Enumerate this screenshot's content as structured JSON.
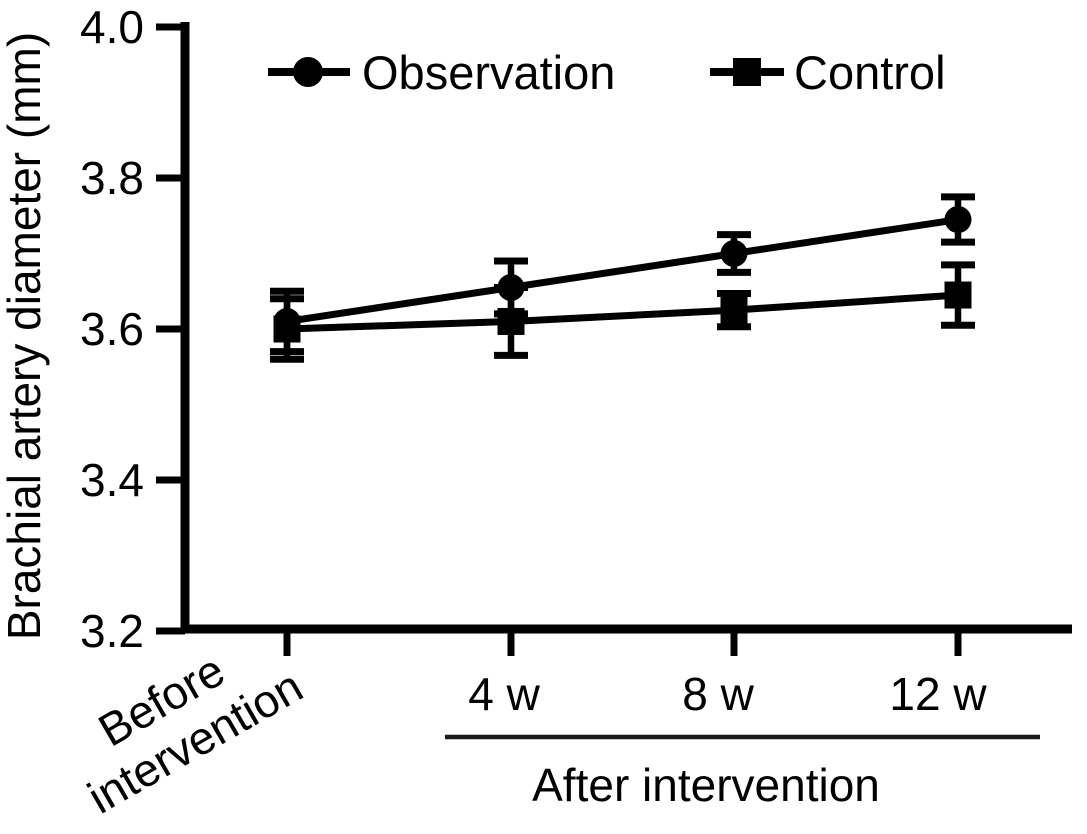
{
  "figure": {
    "background_color": "#ffffff",
    "ink_color": "#000000"
  },
  "chart_data": {
    "type": "line",
    "title": "",
    "xlabel": "",
    "ylabel": "Brachial artery diameter (mm)",
    "categories": [
      "Before intervention",
      "4 w",
      "8 w",
      "12 w"
    ],
    "x_group_label": "After intervention",
    "x_group_members": [
      "4 w",
      "8 w",
      "12 w"
    ],
    "ylim": [
      3.2,
      4.0
    ],
    "yticks": [
      4.0,
      3.8,
      3.6,
      3.4,
      3.2
    ],
    "grid": false,
    "legend_position": "top-center-inside",
    "error_bars": true,
    "series": [
      {
        "name": "Observation",
        "marker": "circle",
        "color": "#000000",
        "values": [
          3.61,
          3.655,
          3.7,
          3.745
        ],
        "errors": [
          0.04,
          0.035,
          0.025,
          0.03
        ]
      },
      {
        "name": "Control",
        "marker": "square",
        "color": "#000000",
        "values": [
          3.6,
          3.61,
          3.625,
          3.645
        ],
        "errors": [
          0.04,
          0.045,
          0.022,
          0.04
        ]
      }
    ]
  },
  "labels": {
    "ylabel": "Brachial artery diameter (mm)",
    "ytick_labels": [
      "4.0",
      "3.8",
      "3.6",
      "3.4",
      "3.2"
    ],
    "before_line1": "Before",
    "before_line2": "intervention",
    "tick_4w": "4 w",
    "tick_8w": "8 w",
    "tick_12w": "12 w",
    "after_group": "After intervention",
    "legend_observation": "Observation",
    "legend_control": "Control"
  }
}
